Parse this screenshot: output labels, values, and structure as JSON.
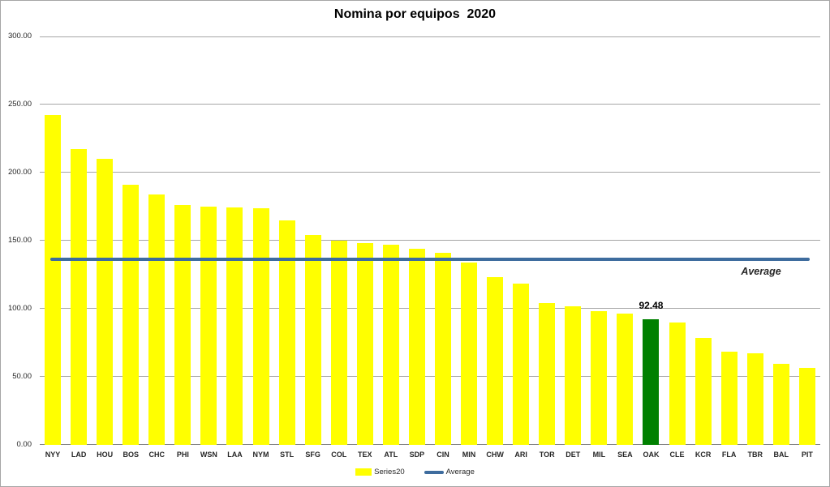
{
  "title": "Nomina por equipos  2020",
  "chart_data": {
    "type": "bar",
    "title": "Nomina por equipos  2020",
    "categories": [
      "NYY",
      "LAD",
      "HOU",
      "BOS",
      "CHC",
      "PHI",
      "WSN",
      "LAA",
      "NYM",
      "STL",
      "SFG",
      "COL",
      "TEX",
      "ATL",
      "SDP",
      "CIN",
      "MIN",
      "CHW",
      "ARI",
      "TOR",
      "DET",
      "MIL",
      "SEA",
      "OAK",
      "CLE",
      "KCR",
      "FLA",
      "TBR",
      "BAL",
      "PIT"
    ],
    "values": [
      242.0,
      217.0,
      210.0,
      191.0,
      184.0,
      176.0,
      175.0,
      174.5,
      174.0,
      165.0,
      154.0,
      150.0,
      148.0,
      147.0,
      144.0,
      141.0,
      134.0,
      123.0,
      118.5,
      104.0,
      102.0,
      98.5,
      96.5,
      92.48,
      90.0,
      78.5,
      68.5,
      67.5,
      59.5,
      56.5
    ],
    "series_name": "Series20",
    "highlighted_category": "OAK",
    "highlighted_value_label": "92.48",
    "average_value": 136.07,
    "average_label": "Average",
    "xlabel": "",
    "ylabel": "",
    "ylim": [
      0,
      300
    ],
    "ytick_step": 50,
    "ytick_labels": [
      "0.00",
      "50.00",
      "100.00",
      "150.00",
      "200.00",
      "250.00",
      "300.00"
    ],
    "grid": true,
    "legend_position": "bottom",
    "legend": [
      {
        "label": "Series20",
        "swatch": "bar"
      },
      {
        "label": "Average",
        "swatch": "line"
      }
    ]
  },
  "colors": {
    "bar": "#ffff00",
    "highlight_bar": "#008000",
    "average_line": "#3e6c9e",
    "gridline": "#a6a6a6",
    "text": "#262626"
  }
}
